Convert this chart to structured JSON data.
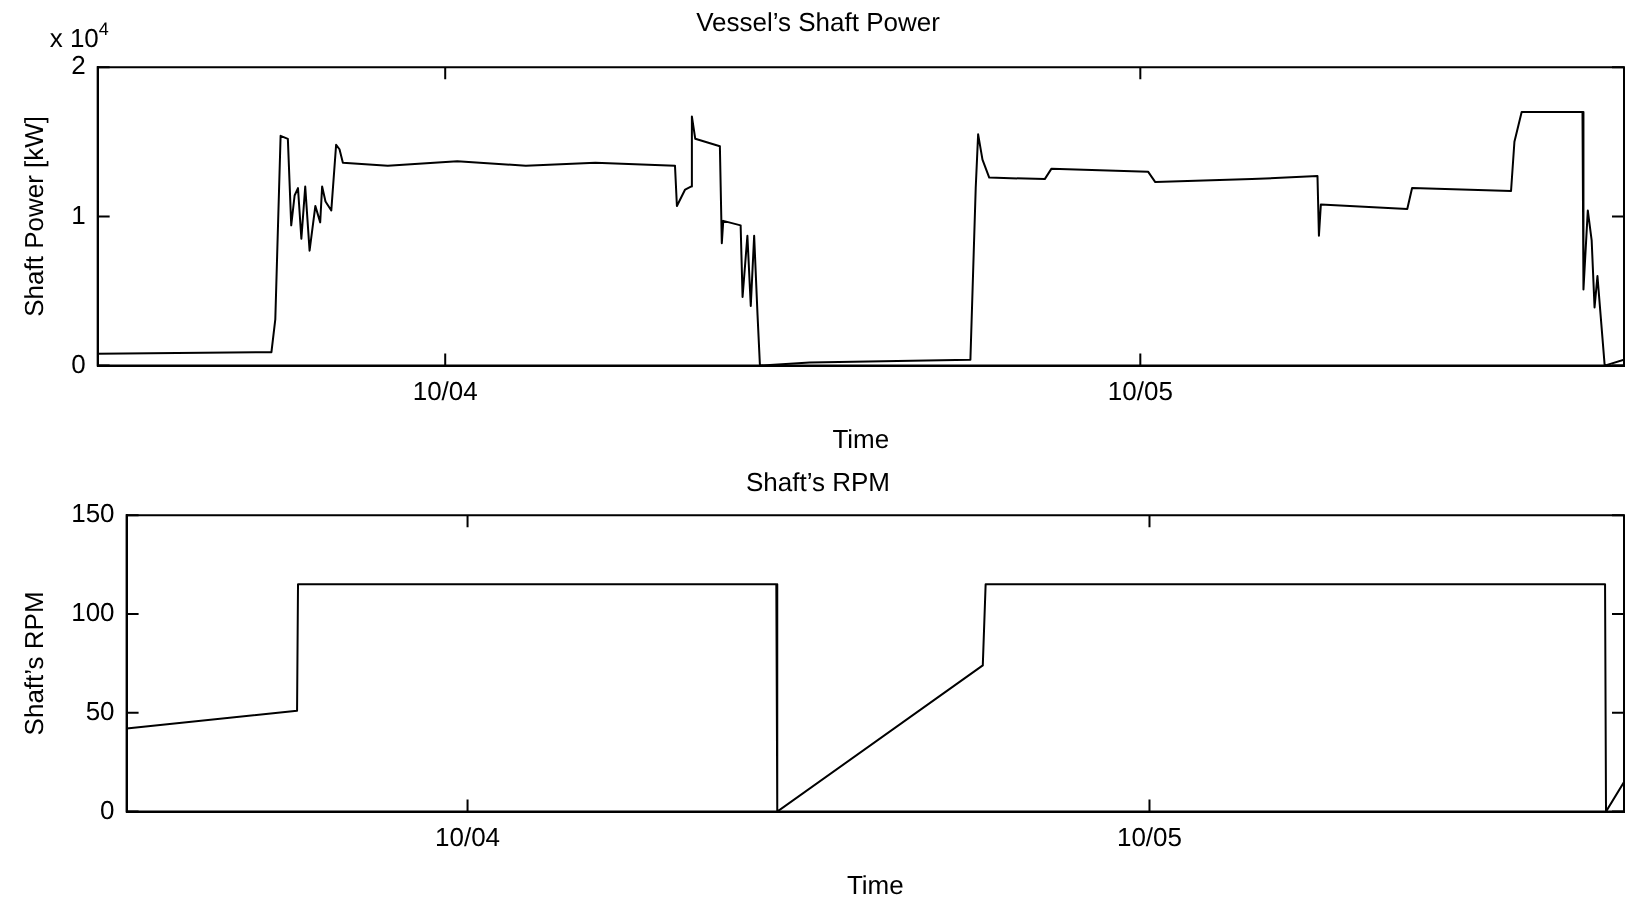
{
  "chart_data": [
    {
      "type": "line",
      "title": "Vessel’s Shaft Power",
      "xlabel": "Time",
      "ylabel": "Shaft Power [kW]",
      "annotations": [
        "x 10$^{4}$"
      ],
      "xlim": [
        "--10-03T12:00",
        "--10-05T16:42"
      ],
      "xticks": [
        {
          "value": "--10-04",
          "label": "10/04"
        },
        {
          "value": "--10-05",
          "label": "10/05"
        }
      ],
      "ylim": [
        0,
        2
      ],
      "yticks": [
        0,
        1,
        2
      ],
      "series": [
        {
          "color": "#000000",
          "x": [
            "--10-03T12:00",
            "--10-03T18:00",
            "--10-03T18:08",
            "--10-03T18:19",
            "--10-03T18:34",
            "--10-03T18:41",
            "--10-03T18:48",
            "--10-03T18:55",
            "--10-03T19:02",
            "--10-03T19:10",
            "--10-03T19:19",
            "--10-03T19:31",
            "--10-03T19:41",
            "--10-03T19:45",
            "--10-03T19:52",
            "--10-03T20:04",
            "--10-03T20:14",
            "--10-03T20:21",
            "--10-03T20:28",
            "--10-03T22:01",
            "--10-04T00:25",
            "--10-04T02:47",
            "--10-04T05:11",
            "--10-04T07:56",
            "--10-04T08:00",
            "--10-04T08:17",
            "--10-04T08:29",
            "--10-04T08:31",
            "--10-04T08:38",
            "--10-04T09:29",
            "--10-04T09:33",
            "--10-04T09:36",
            "--10-04T10:12",
            "--10-04T10:16",
            "--10-04T10:26",
            "--10-04T10:33",
            "--10-04T10:40",
            "--10-04T10:47",
            "--10-04T10:52",
            "--10-04T12:35",
            "--10-04T18:08",
            "--10-04T18:19",
            "--10-04T18:24",
            "--10-04T18:33",
            "--10-04T18:47",
            "--10-04T20:42",
            "--10-04T20:56",
            "--10-05T00:16",
            "--10-05T00:31",
            "--10-05T03:51",
            "--10-05T06:07",
            "--10-05T06:10",
            "--10-05T06:14",
            "--10-05T09:13",
            "--10-05T09:23",
            "--10-05T12:48",
            "--10-05T12:55",
            "--10-05T13:10",
            "--10-05T15:16",
            "--10-05T15:18",
            "--10-05T15:27",
            "--10-05T15:35",
            "--10-05T15:41",
            "--10-05T15:47",
            "--10-05T16:02",
            "--10-05T16:42"
          ],
          "values": [
            0.08,
            0.09,
            0.31,
            1.54,
            1.52,
            0.94,
            1.14,
            1.19,
            0.85,
            1.2,
            0.77,
            1.07,
            0.96,
            1.2,
            1.1,
            1.04,
            1.48,
            1.45,
            1.36,
            1.34,
            1.37,
            1.34,
            1.36,
            1.34,
            1.07,
            1.18,
            1.2,
            1.67,
            1.52,
            1.47,
            0.82,
            0.97,
            0.94,
            0.46,
            0.87,
            0.4,
            0.87,
            0.34,
            0,
            0.02,
            0.04,
            1.19,
            1.55,
            1.38,
            1.26,
            1.25,
            1.32,
            1.3,
            1.23,
            1.25,
            1.27,
            0.87,
            1.08,
            1.05,
            1.19,
            1.17,
            1.5,
            1.7,
            1.7,
            0.51,
            1.04,
            0.84,
            0.39,
            0.6,
            0,
            0.04
          ]
        }
      ]
    },
    {
      "type": "line",
      "title": "Shaft’s RPM",
      "xlabel": "Time",
      "ylabel": "Shaft’s RPM",
      "xlim": [
        "--10-03T12:00",
        "--10-05T16:42"
      ],
      "xticks": [
        {
          "value": "--10-04",
          "label": "10/04"
        },
        {
          "value": "--10-05",
          "label": "10/05"
        }
      ],
      "ylim": [
        0,
        150
      ],
      "yticks": [
        0,
        50,
        100,
        150
      ],
      "series": [
        {
          "color": "#000000",
          "x": [
            "--10-03T12:00",
            "--10-03T18:00",
            "--10-03T18:02",
            "--10-04T10:52",
            "--10-04T10:54",
            "--10-04T18:08",
            "--10-04T18:14",
            "--10-05T16:02",
            "--10-05T16:04",
            "--10-05T16:42"
          ],
          "values": [
            42,
            51,
            115,
            115,
            0,
            74,
            115,
            115,
            0,
            15
          ]
        }
      ]
    }
  ]
}
